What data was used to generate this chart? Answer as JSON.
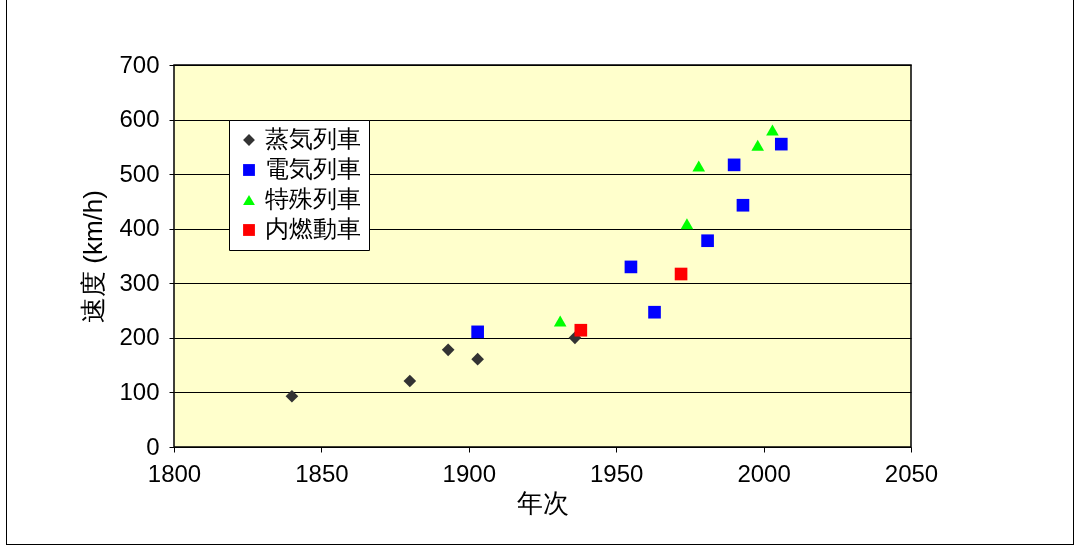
{
  "chart_data": {
    "type": "scatter",
    "xlabel": "年次",
    "ylabel": "速度 (km/h)",
    "xlim": [
      1800,
      2050
    ],
    "xticks": [
      1800,
      1850,
      1900,
      1950,
      2000,
      2050
    ],
    "ylim": [
      0,
      700
    ],
    "yticks": [
      0,
      100,
      200,
      300,
      400,
      500,
      600,
      700
    ],
    "grid": "y",
    "legend": "top left",
    "series": [
      {
        "name": "蒸気列車",
        "color": "#333333",
        "marker": "diamond",
        "x": [
          1840,
          1880,
          1893,
          1903,
          1936
        ],
        "values": [
          93,
          121,
          178,
          161,
          200
        ]
      },
      {
        "name": "電気列車",
        "color": "#0000ff",
        "marker": "square",
        "x": [
          1903,
          1955,
          1963,
          1981,
          1990,
          1993,
          2006
        ],
        "values": [
          211,
          330,
          247,
          378,
          517,
          443,
          555
        ]
      },
      {
        "name": "特殊列車",
        "color": "#00ff00",
        "marker": "triangle",
        "x": [
          1931,
          1974,
          1978,
          1998,
          2003
        ],
        "values": [
          231,
          409,
          515,
          553,
          581
        ]
      },
      {
        "name": "内燃動車",
        "color": "#ff0000",
        "marker": "square",
        "x": [
          1938,
          1972
        ],
        "values": [
          214,
          317
        ]
      }
    ]
  }
}
